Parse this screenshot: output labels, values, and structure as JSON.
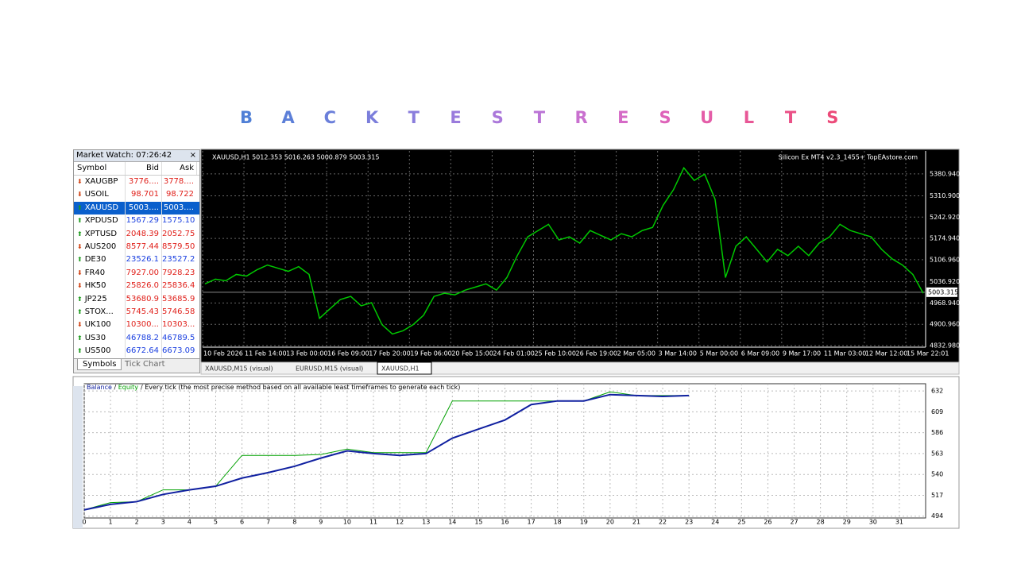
{
  "title_letters": [
    "B",
    "A",
    "C",
    "K",
    "T",
    "E",
    "S",
    "T",
    "R",
    "E",
    "S",
    "U",
    "L",
    "T",
    "S"
  ],
  "title_colors": [
    "#4f7fd6",
    "#5c7fd8",
    "#6b7fda",
    "#7b7edb",
    "#8a7ddc",
    "#9a7bdc",
    "#ab78da",
    "#bb74d6",
    "#c970cf",
    "#d56ac6",
    "#de63b9",
    "#e45da8",
    "#e85796",
    "#ea5187",
    "#ec4a79"
  ],
  "market_watch": {
    "header": "Market Watch: 07:26:42",
    "columns": [
      "Symbol",
      "Bid",
      "Ask"
    ],
    "rows": [
      {
        "symbol": "XAUGBP",
        "bid": "3776....",
        "ask": "3778....",
        "color": "#e0201a",
        "trend": "down"
      },
      {
        "symbol": "USOIL",
        "bid": "98.701",
        "ask": "98.722",
        "color": "#e0201a",
        "trend": "down"
      },
      {
        "symbol": "XAUUSD",
        "bid": "5003....",
        "ask": "5003....",
        "color": "#ffffff",
        "trend": "up",
        "selected": true
      },
      {
        "symbol": "XPDUSD",
        "bid": "1567.29",
        "ask": "1575.10",
        "color": "#1a3fe0",
        "trend": "up"
      },
      {
        "symbol": "XPTUSD",
        "bid": "2048.39",
        "ask": "2052.75",
        "color": "#e0201a",
        "trend": "up"
      },
      {
        "symbol": "AUS200",
        "bid": "8577.44",
        "ask": "8579.50",
        "color": "#e0201a",
        "trend": "down"
      },
      {
        "symbol": "DE30",
        "bid": "23526.1",
        "ask": "23527.2",
        "color": "#1a3fe0",
        "trend": "up"
      },
      {
        "symbol": "FR40",
        "bid": "7927.00",
        "ask": "7928.23",
        "color": "#e0201a",
        "trend": "down"
      },
      {
        "symbol": "HK50",
        "bid": "25826.0",
        "ask": "25836.4",
        "color": "#e0201a",
        "trend": "down"
      },
      {
        "symbol": "JP225",
        "bid": "53680.9",
        "ask": "53685.9",
        "color": "#e0201a",
        "trend": "up"
      },
      {
        "symbol": "STOX...",
        "bid": "5745.43",
        "ask": "5746.58",
        "color": "#e0201a",
        "trend": "up"
      },
      {
        "symbol": "UK100",
        "bid": "10300...",
        "ask": "10303...",
        "color": "#e0201a",
        "trend": "down"
      },
      {
        "symbol": "US30",
        "bid": "46788.2",
        "ask": "46789.5",
        "color": "#1a3fe0",
        "trend": "up"
      },
      {
        "symbol": "US500",
        "bid": "6672.64",
        "ask": "6673.09",
        "color": "#1a3fe0",
        "trend": "up"
      }
    ],
    "tabs": [
      "Symbols",
      "Tick Chart"
    ]
  },
  "price_chart": {
    "info": "XAUUSD,H1  5012.353 5016.263 5000.879 5003.315",
    "brand": "Silicon Ex MT4 v2.3_1455+ TopEAstore.com",
    "color": "#00c800",
    "ylim": [
      4828,
      5454
    ],
    "yticks": [
      {
        "value": 5380.94,
        "label": "5380.940"
      },
      {
        "value": 5310.9,
        "label": "5310.900"
      },
      {
        "value": 5242.92,
        "label": "5242.920"
      },
      {
        "value": 5174.94,
        "label": "5174.940"
      },
      {
        "value": 5106.96,
        "label": "5106.960"
      },
      {
        "value": 5036.92,
        "label": "5036.920"
      },
      {
        "value": 4968.94,
        "label": "4968.940"
      },
      {
        "value": 4900.96,
        "label": "4900.960"
      },
      {
        "value": 4832.98,
        "label": "4832.980"
      }
    ],
    "current": {
      "value": 5003.315,
      "label": "5003.315"
    },
    "xlabels": [
      "10 Feb 2026",
      "11 Feb 14:00",
      "13 Feb 00:00",
      "16 Feb 09:00",
      "17 Feb 20:00",
      "19 Feb 06:00",
      "20 Feb 15:00",
      "24 Feb 01:00",
      "25 Feb 10:00",
      "26 Feb 19:00",
      "2 Mar 05:00",
      "3 Mar 14:00",
      "5 Mar 00:00",
      "6 Mar 09:00",
      "9 Mar 17:00",
      "11 Mar 03:00",
      "12 Mar 12:00",
      "15 Mar 22:01"
    ],
    "close": [
      5030,
      5045,
      5040,
      5060,
      5055,
      5075,
      5090,
      5080,
      5070,
      5085,
      5060,
      4920,
      4950,
      4980,
      4990,
      4960,
      4970,
      4900,
      4870,
      4880,
      4900,
      4930,
      4990,
      5000,
      4995,
      5010,
      5020,
      5030,
      5010,
      5050,
      5120,
      5180,
      5200,
      5220,
      5170,
      5180,
      5160,
      5200,
      5185,
      5170,
      5190,
      5180,
      5200,
      5210,
      5280,
      5330,
      5400,
      5360,
      5380,
      5300,
      5050,
      5150,
      5180,
      5140,
      5100,
      5140,
      5120,
      5150,
      5120,
      5160,
      5180,
      5220,
      5200,
      5190,
      5180,
      5140,
      5110,
      5090,
      5060,
      5000
    ],
    "tabs": [
      "XAUUSD,M15 (visual)",
      "EURUSD,M15 (visual)",
      "XAUUSD,H1"
    ]
  },
  "balance_chart": {
    "note": "/ Every tick (the most precise method based on all available least timeframes to generate each tick)",
    "xlim": [
      0,
      32
    ],
    "ylim": [
      492,
      640
    ],
    "xticks": [
      0,
      1,
      2,
      3,
      4,
      5,
      6,
      7,
      8,
      9,
      10,
      11,
      12,
      13,
      14,
      15,
      16,
      17,
      18,
      19,
      20,
      21,
      22,
      23,
      24,
      25,
      26,
      27,
      28,
      29,
      30,
      31
    ],
    "yticks": [
      494,
      517,
      540,
      563,
      586,
      609,
      632
    ],
    "x": [
      0,
      1,
      2,
      3,
      4,
      5,
      6,
      7,
      8,
      9,
      10,
      11,
      12,
      13,
      14,
      15,
      16,
      17,
      18,
      19,
      20,
      21,
      22,
      23
    ],
    "series": [
      {
        "name": "Equity",
        "color": "#00a000",
        "values": [
          501,
          509,
          510,
          523,
          523,
          527,
          561,
          561,
          561,
          562,
          568,
          564,
          564,
          564,
          621,
          621,
          621,
          621,
          621,
          621,
          631,
          627,
          627,
          627
        ]
      },
      {
        "name": "Balance",
        "color": "#1020a0",
        "values": [
          501,
          507,
          510,
          518,
          523,
          527,
          536,
          542,
          549,
          558,
          566,
          563,
          561,
          563,
          580,
          590,
          600,
          617,
          621,
          621,
          628,
          627,
          626,
          627
        ]
      }
    ]
  }
}
